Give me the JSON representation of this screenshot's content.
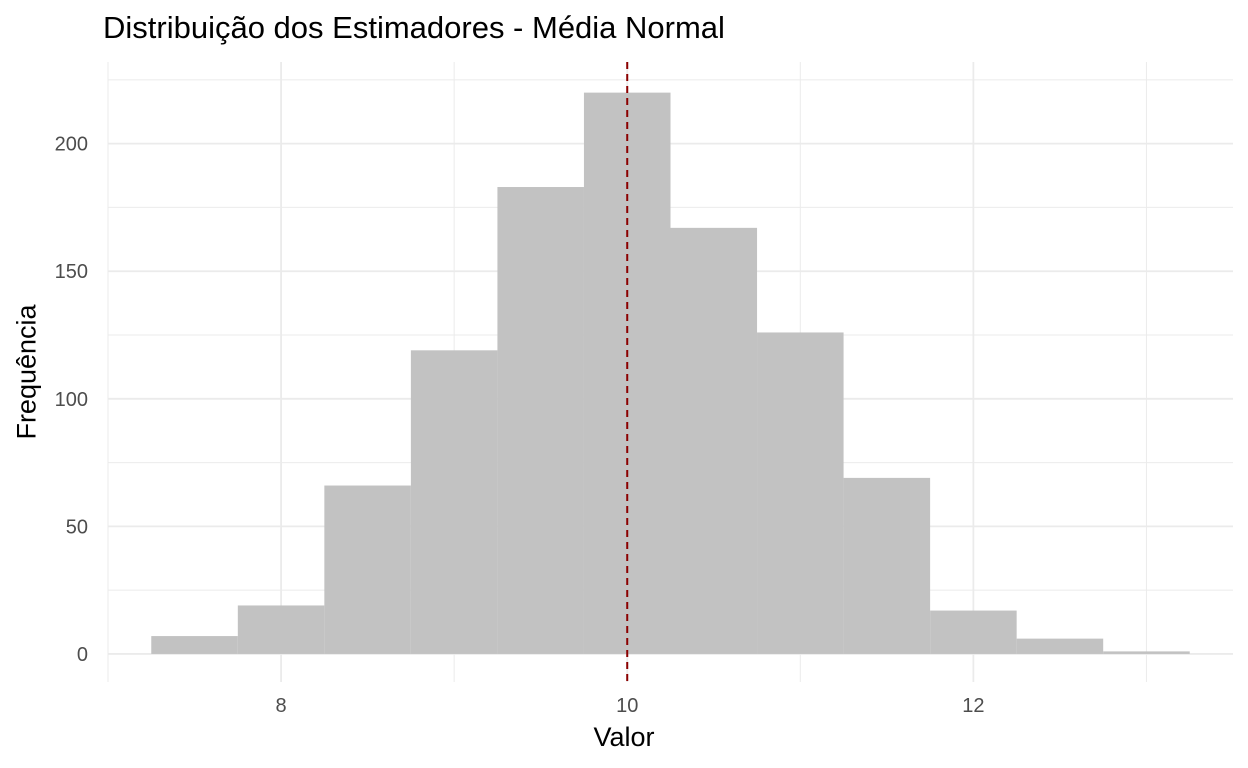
{
  "chart_data": {
    "type": "bar",
    "subtype": "histogram",
    "title": "Distribuição dos Estimadores - Média Normal",
    "xlabel": "Valor",
    "ylabel": "Frequência",
    "bin_width": 0.5,
    "bins": [
      {
        "start": 7.25,
        "end": 7.75,
        "count": 7
      },
      {
        "start": 7.75,
        "end": 8.25,
        "count": 19
      },
      {
        "start": 8.25,
        "end": 8.75,
        "count": 66
      },
      {
        "start": 8.75,
        "end": 9.25,
        "count": 119
      },
      {
        "start": 9.25,
        "end": 9.75,
        "count": 183
      },
      {
        "start": 9.75,
        "end": 10.25,
        "count": 220
      },
      {
        "start": 10.25,
        "end": 10.75,
        "count": 167
      },
      {
        "start": 10.75,
        "end": 11.25,
        "count": 126
      },
      {
        "start": 11.25,
        "end": 11.75,
        "count": 69
      },
      {
        "start": 11.75,
        "end": 12.25,
        "count": 17
      },
      {
        "start": 12.25,
        "end": 12.75,
        "count": 6
      },
      {
        "start": 12.75,
        "end": 13.25,
        "count": 1
      }
    ],
    "xlim": [
      7.0,
      13.5
    ],
    "ylim": [
      -11,
      232
    ],
    "x_ticks": [
      8,
      10,
      12
    ],
    "x_tick_labels": [
      "8",
      "10",
      "12"
    ],
    "y_ticks": [
      0,
      50,
      100,
      150,
      200
    ],
    "y_tick_labels": [
      "0",
      "50",
      "100",
      "150",
      "200"
    ],
    "reference_line": {
      "x": 10,
      "style": "dashed",
      "color": "#8b0000"
    },
    "bar_color": "#c2c2c2",
    "grid": true,
    "grid_color": "#ebebeb",
    "legend": "none"
  }
}
